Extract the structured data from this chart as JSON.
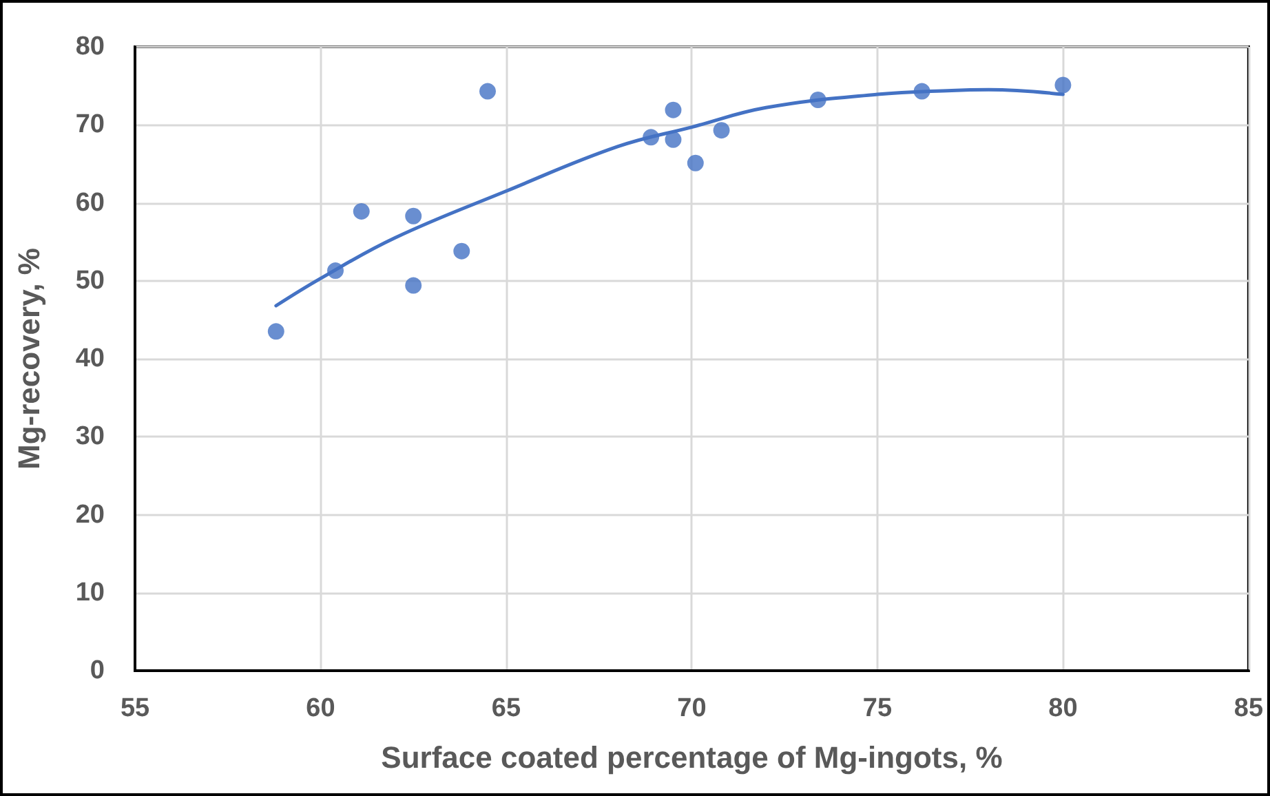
{
  "chart_data": {
    "type": "scatter",
    "xlabel": "Surface coated percentage of Mg-ingots, %",
    "ylabel": "Mg-recovery, %",
    "xlim": [
      55,
      85
    ],
    "xticks": [
      55,
      60,
      65,
      70,
      75,
      80,
      85
    ],
    "ylim": [
      0,
      80
    ],
    "yticks": [
      0,
      10,
      20,
      30,
      40,
      50,
      60,
      70,
      80
    ],
    "grid": true,
    "marker": "circle",
    "series": [
      {
        "color": "#4472c4",
        "x": [
          58.8,
          60.4,
          61.1,
          62.5,
          62.5,
          63.8,
          64.5,
          68.9,
          69.5,
          69.5,
          70.1,
          70.8,
          73.4,
          76.2,
          80
        ],
        "values": [
          43.5,
          51.3,
          58.9,
          58.3,
          49.4,
          53.8,
          74.3,
          68.4,
          71.9,
          68.1,
          65.1,
          69.3,
          73.2,
          74.3,
          75.1
        ]
      },
      {
        "type": "line",
        "color": "#4472c4",
        "marker": "none",
        "x": [
          58.8,
          60,
          62,
          65,
          68,
          70,
          72,
          75,
          77,
          78,
          80
        ],
        "values": [
          46.8,
          50.3,
          55.5,
          61.5,
          67.2,
          69.7,
          72.2,
          73.9,
          74.4,
          74.5,
          73.9
        ]
      }
    ]
  }
}
